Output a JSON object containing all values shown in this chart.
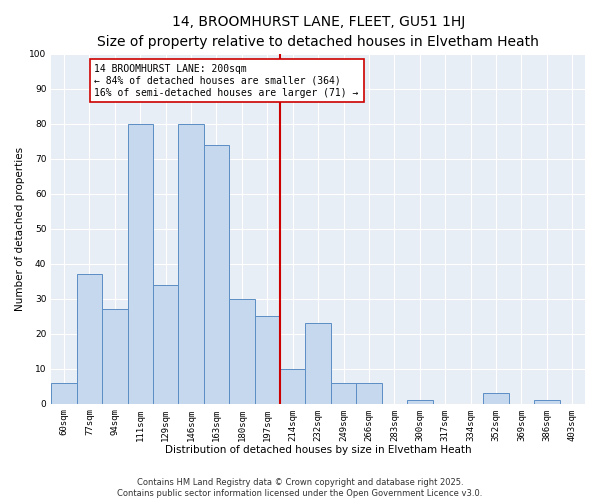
{
  "title": "14, BROOMHURST LANE, FLEET, GU51 1HJ",
  "subtitle": "Size of property relative to detached houses in Elvetham Heath",
  "xlabel": "Distribution of detached houses by size in Elvetham Heath",
  "ylabel": "Number of detached properties",
  "bar_labels": [
    "60sqm",
    "77sqm",
    "94sqm",
    "111sqm",
    "129sqm",
    "146sqm",
    "163sqm",
    "180sqm",
    "197sqm",
    "214sqm",
    "232sqm",
    "249sqm",
    "266sqm",
    "283sqm",
    "300sqm",
    "317sqm",
    "334sqm",
    "352sqm",
    "369sqm",
    "386sqm",
    "403sqm"
  ],
  "bar_values": [
    6,
    37,
    27,
    80,
    34,
    80,
    74,
    30,
    25,
    10,
    23,
    6,
    6,
    0,
    1,
    0,
    0,
    3,
    0,
    1,
    0
  ],
  "bar_color": "#c5d8ee",
  "bar_edge_color": "#5b8ec4",
  "highlight_line_color": "#cc0000",
  "annotation_text": "14 BROOMHURST LANE: 200sqm\n← 84% of detached houses are smaller (364)\n16% of semi-detached houses are larger (71) →",
  "annotation_box_edge": "#cc0000",
  "ylim": [
    0,
    100
  ],
  "yticks": [
    0,
    10,
    20,
    30,
    40,
    50,
    60,
    70,
    80,
    90,
    100
  ],
  "background_color": "#e8eef5",
  "grid_color": "#ffffff",
  "footer_line1": "Contains HM Land Registry data © Crown copyright and database right 2025.",
  "footer_line2": "Contains public sector information licensed under the Open Government Licence v3.0.",
  "title_fontsize": 10,
  "axis_label_fontsize": 7.5,
  "tick_fontsize": 6.5,
  "annotation_fontsize": 7,
  "footer_fontsize": 6
}
